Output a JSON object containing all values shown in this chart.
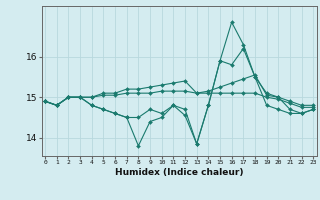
{
  "title": "",
  "xlabel": "Humidex (Indice chaleur)",
  "ylabel": "",
  "bg_color": "#d4ecf0",
  "grid_color": "#b8d8de",
  "line_color": "#1a7a6e",
  "x_ticks": [
    0,
    1,
    2,
    3,
    4,
    5,
    6,
    7,
    8,
    9,
    10,
    11,
    12,
    13,
    14,
    15,
    16,
    17,
    18,
    19,
    20,
    21,
    22,
    23
  ],
  "y_ticks": [
    14,
    15,
    16
  ],
  "xlim": [
    -0.3,
    23.3
  ],
  "ylim": [
    13.55,
    17.25
  ],
  "lines": [
    [
      14.9,
      14.8,
      15.0,
      15.0,
      14.8,
      14.7,
      14.6,
      14.5,
      14.5,
      14.7,
      14.6,
      14.8,
      14.7,
      13.85,
      14.8,
      15.9,
      15.8,
      16.2,
      15.5,
      14.8,
      14.7,
      14.6,
      14.6,
      14.7
    ],
    [
      14.9,
      14.8,
      15.0,
      15.0,
      14.8,
      14.7,
      14.6,
      14.5,
      13.8,
      14.4,
      14.5,
      14.8,
      14.55,
      13.85,
      14.8,
      15.9,
      16.85,
      16.3,
      15.5,
      15.1,
      15.0,
      14.7,
      14.6,
      14.7
    ],
    [
      14.9,
      14.8,
      15.0,
      15.0,
      15.0,
      15.1,
      15.1,
      15.2,
      15.2,
      15.25,
      15.3,
      15.35,
      15.4,
      15.1,
      15.15,
      15.25,
      15.35,
      15.45,
      15.55,
      15.05,
      15.0,
      14.9,
      14.8,
      14.8
    ],
    [
      14.9,
      14.8,
      15.0,
      15.0,
      15.0,
      15.05,
      15.05,
      15.1,
      15.1,
      15.1,
      15.15,
      15.15,
      15.15,
      15.1,
      15.1,
      15.1,
      15.1,
      15.1,
      15.1,
      15.0,
      14.95,
      14.85,
      14.75,
      14.75
    ]
  ]
}
